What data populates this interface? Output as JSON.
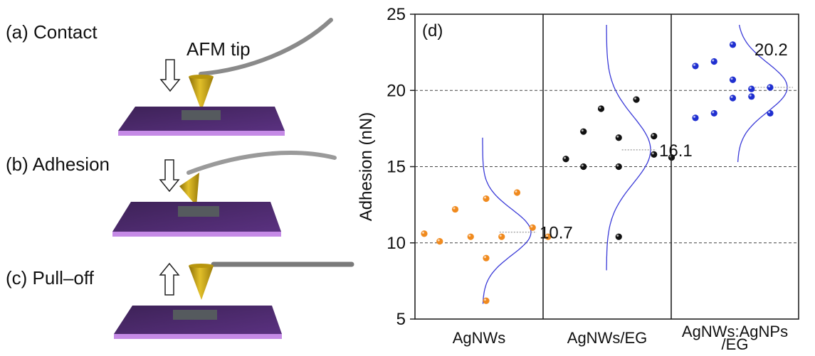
{
  "schematic": {
    "steps": [
      {
        "label": "(a) Contact"
      },
      {
        "label": "(b) Adhesion"
      },
      {
        "label": "(c) Pull–off"
      }
    ],
    "tip_label": "AFM tip",
    "colors": {
      "substrate_top": "#4a2a6a",
      "substrate_edge": "#c58ae6",
      "tip": "#c9a415",
      "cantilever": "#888888"
    }
  },
  "chart_data": {
    "type": "scatter",
    "panel_label": "(d)",
    "ylabel": "Adhesion (nN)",
    "ylim": [
      5,
      25
    ],
    "yticks": [
      5,
      10,
      15,
      20,
      25
    ],
    "reference_lines": [
      10,
      15,
      20
    ],
    "categories": [
      "AgNWs",
      "AgNWs/EG",
      "AgNWs:AgNPs/EG"
    ],
    "category_labels": [
      [
        "AgNWs"
      ],
      [
        "AgNWs/EG"
      ],
      [
        "AgNWs:AgNPs",
        "/EG"
      ]
    ],
    "series": [
      {
        "category": "AgNWs",
        "color": "#f08a1e",
        "points": [
          {
            "x": 1,
            "y": 10.6
          },
          {
            "x": 2,
            "y": 10.1
          },
          {
            "x": 3,
            "y": 12.2
          },
          {
            "x": 4,
            "y": 10.4
          },
          {
            "x": 5,
            "y": 12.9
          },
          {
            "x": 5,
            "y": 9.0
          },
          {
            "x": 6,
            "y": 10.4
          },
          {
            "x": 7,
            "y": 13.3
          },
          {
            "x": 8,
            "y": 11.0
          },
          {
            "x": 9,
            "y": 10.4
          },
          {
            "x": 5,
            "y": 6.2
          }
        ],
        "mean": 10.7,
        "mean_label": "10.7",
        "gauss_sigma": 1.5,
        "gauss_range": [
          6.0,
          16.9
        ]
      },
      {
        "category": "AgNWs/EG",
        "color": "#111111",
        "points": [
          {
            "x": 1,
            "y": 15.5
          },
          {
            "x": 2,
            "y": 17.3
          },
          {
            "x": 2,
            "y": 15.0
          },
          {
            "x": 3,
            "y": 18.8
          },
          {
            "x": 4,
            "y": 16.9
          },
          {
            "x": 4,
            "y": 15.0
          },
          {
            "x": 5,
            "y": 19.4
          },
          {
            "x": 6,
            "y": 17.0
          },
          {
            "x": 6,
            "y": 15.8
          },
          {
            "x": 7,
            "y": 15.6
          },
          {
            "x": 4,
            "y": 10.4
          }
        ],
        "mean": 16.1,
        "mean_label": "16.1",
        "gauss_sigma": 2.2,
        "gauss_range": [
          8.2,
          24.3
        ]
      },
      {
        "category": "AgNWs:AgNPs/EG",
        "color": "#1f2fd0",
        "points": [
          {
            "x": 1,
            "y": 21.6
          },
          {
            "x": 1,
            "y": 18.2
          },
          {
            "x": 2,
            "y": 21.9
          },
          {
            "x": 2,
            "y": 18.5
          },
          {
            "x": 3,
            "y": 23.0
          },
          {
            "x": 3,
            "y": 20.7
          },
          {
            "x": 3,
            "y": 19.5
          },
          {
            "x": 4,
            "y": 20.1
          },
          {
            "x": 4,
            "y": 19.6
          },
          {
            "x": 5,
            "y": 20.2
          },
          {
            "x": 5,
            "y": 18.5
          }
        ],
        "mean": 20.2,
        "mean_label": "20.2",
        "gauss_sigma": 1.6,
        "gauss_range": [
          15.3,
          24.3
        ]
      }
    ],
    "gauss_color": "#3b3bd8",
    "grid": "dashed at 10, 15, 20"
  }
}
